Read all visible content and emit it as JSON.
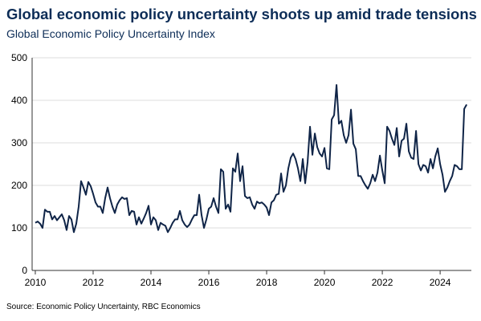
{
  "chart_data": {
    "type": "line",
    "title": "Global economic policy uncertainty shoots up amid trade tensions",
    "subtitle": "Global Economic Policy Uncertainty Index",
    "source": "Source: Economic Policy Uncertainty, RBC Economics",
    "x": [
      2010.0,
      2010.083,
      2010.167,
      2010.25,
      2010.333,
      2010.417,
      2010.5,
      2010.583,
      2010.667,
      2010.75,
      2010.833,
      2010.917,
      2011.0,
      2011.083,
      2011.167,
      2011.25,
      2011.333,
      2011.417,
      2011.5,
      2011.583,
      2011.667,
      2011.75,
      2011.833,
      2011.917,
      2012.0,
      2012.083,
      2012.167,
      2012.25,
      2012.333,
      2012.417,
      2012.5,
      2012.583,
      2012.667,
      2012.75,
      2012.833,
      2012.917,
      2013.0,
      2013.083,
      2013.167,
      2013.25,
      2013.333,
      2013.417,
      2013.5,
      2013.583,
      2013.667,
      2013.75,
      2013.833,
      2013.917,
      2014.0,
      2014.083,
      2014.167,
      2014.25,
      2014.333,
      2014.417,
      2014.5,
      2014.583,
      2014.667,
      2014.75,
      2014.833,
      2014.917,
      2015.0,
      2015.083,
      2015.167,
      2015.25,
      2015.333,
      2015.417,
      2015.5,
      2015.583,
      2015.667,
      2015.75,
      2015.833,
      2015.917,
      2016.0,
      2016.083,
      2016.167,
      2016.25,
      2016.333,
      2016.417,
      2016.5,
      2016.583,
      2016.667,
      2016.75,
      2016.833,
      2016.917,
      2017.0,
      2017.083,
      2017.167,
      2017.25,
      2017.333,
      2017.417,
      2017.5,
      2017.583,
      2017.667,
      2017.75,
      2017.833,
      2017.917,
      2018.0,
      2018.083,
      2018.167,
      2018.25,
      2018.333,
      2018.417,
      2018.5,
      2018.583,
      2018.667,
      2018.75,
      2018.833,
      2018.917,
      2019.0,
      2019.083,
      2019.167,
      2019.25,
      2019.333,
      2019.417,
      2019.5,
      2019.583,
      2019.667,
      2019.75,
      2019.833,
      2019.917,
      2020.0,
      2020.083,
      2020.167,
      2020.25,
      2020.333,
      2020.417,
      2020.5,
      2020.583,
      2020.667,
      2020.75,
      2020.833,
      2020.917,
      2021.0,
      2021.083,
      2021.167,
      2021.25,
      2021.333,
      2021.417,
      2021.5,
      2021.583,
      2021.667,
      2021.75,
      2021.833,
      2021.917,
      2022.0,
      2022.083,
      2022.167,
      2022.25,
      2022.333,
      2022.417,
      2022.5,
      2022.583,
      2022.667,
      2022.75,
      2022.833,
      2022.917,
      2023.0,
      2023.083,
      2023.167,
      2023.25,
      2023.333,
      2023.417,
      2023.5,
      2023.583,
      2023.667,
      2023.75,
      2023.833,
      2023.917,
      2024.0,
      2024.083,
      2024.167,
      2024.25,
      2024.333,
      2024.417,
      2024.5,
      2024.583,
      2024.667,
      2024.75,
      2024.833,
      2024.917
    ],
    "series": [
      {
        "color": "#0f2447",
        "values": [
          112,
          115,
          110,
          100,
          143,
          138,
          138,
          120,
          128,
          118,
          125,
          132,
          118,
          95,
          128,
          120,
          90,
          110,
          150,
          210,
          195,
          178,
          208,
          198,
          180,
          160,
          150,
          150,
          135,
          170,
          195,
          170,
          150,
          135,
          155,
          165,
          172,
          168,
          170,
          130,
          140,
          138,
          108,
          125,
          110,
          122,
          135,
          152,
          108,
          125,
          118,
          95,
          112,
          108,
          105,
          90,
          100,
          112,
          120,
          120,
          140,
          118,
          108,
          102,
          108,
          120,
          130,
          130,
          178,
          130,
          100,
          120,
          145,
          150,
          170,
          150,
          135,
          238,
          232,
          145,
          155,
          138,
          240,
          232,
          275,
          210,
          245,
          175,
          170,
          172,
          155,
          145,
          162,
          158,
          160,
          155,
          148,
          130,
          160,
          165,
          178,
          180,
          228,
          185,
          200,
          240,
          265,
          275,
          262,
          240,
          210,
          262,
          205,
          255,
          338,
          272,
          322,
          290,
          275,
          268,
          288,
          240,
          238,
          355,
          365,
          436,
          345,
          352,
          318,
          300,
          318,
          378,
          298,
          285,
          222,
          222,
          210,
          200,
          192,
          205,
          225,
          210,
          230,
          270,
          235,
          205,
          338,
          328,
          310,
          295,
          335,
          268,
          305,
          310,
          345,
          280,
          265,
          262,
          328,
          250,
          235,
          248,
          245,
          230,
          262,
          240,
          268,
          287,
          250,
          225,
          185,
          195,
          210,
          222,
          248,
          245,
          238,
          238,
          380,
          390
        ]
      }
    ],
    "xlim": [
      2009.89,
      2025.08
    ],
    "xticks": [
      2010,
      2012,
      2014,
      2016,
      2018,
      2020,
      2022,
      2024
    ],
    "ylim": [
      0,
      500
    ],
    "yticks": [
      0,
      100,
      200,
      300,
      400,
      500
    ],
    "grid": true
  }
}
